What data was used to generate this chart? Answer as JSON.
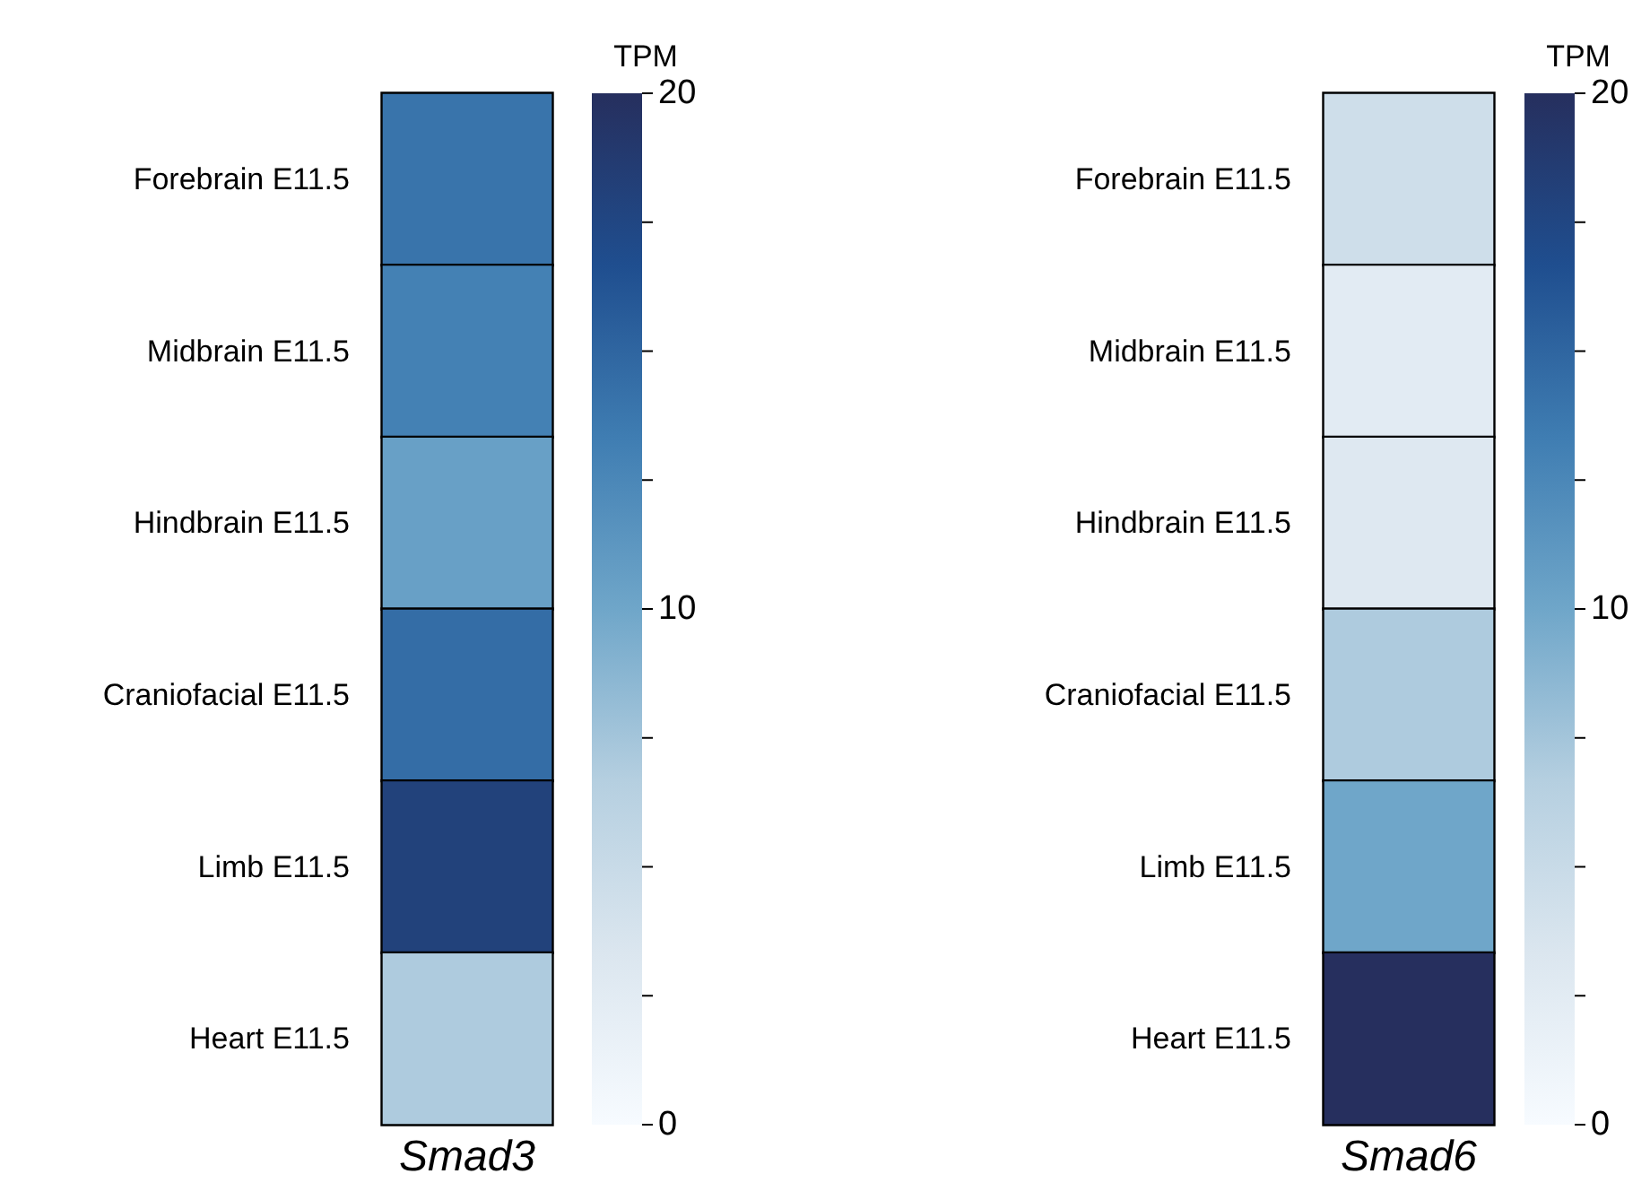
{
  "chart_data": [
    {
      "type": "heatmap",
      "categories": [
        "Smad3"
      ],
      "y_categories": [
        "Forebrain E11.5",
        "Midbrain E11.5",
        "Hindbrain E11.5",
        "Craniofacial E11.5",
        "Limb E11.5",
        "Heart E11.5"
      ],
      "cells": [
        [
          14
        ],
        [
          13
        ],
        [
          10.5
        ],
        [
          14.5
        ],
        [
          18
        ],
        [
          7
        ]
      ],
      "clabel": "TPM",
      "clim": [
        0,
        20
      ],
      "cticks": [
        0,
        {
          "value": 2.5,
          "label": null
        },
        {
          "value": 5,
          "label": null
        },
        {
          "value": 7.5,
          "label": null
        },
        10,
        {
          "value": 12.5,
          "label": null
        },
        {
          "value": 15,
          "label": null
        },
        {
          "value": 17.5,
          "label": null
        },
        20
      ]
    },
    {
      "type": "heatmap",
      "categories": [
        "Smad6"
      ],
      "y_categories": [
        "Forebrain E11.5",
        "Midbrain E11.5",
        "Hindbrain E11.5",
        "Craniofacial E11.5",
        "Limb E11.5",
        "Heart E11.5"
      ],
      "cells": [
        [
          4.5
        ],
        [
          2.5
        ],
        [
          3
        ],
        [
          7
        ],
        [
          10
        ],
        [
          20
        ]
      ],
      "clabel": "TPM",
      "clim": [
        0,
        20
      ],
      "cticks": [
        0,
        {
          "value": 2.5,
          "label": null
        },
        {
          "value": 5,
          "label": null
        },
        {
          "value": 7.5,
          "label": null
        },
        10,
        {
          "value": 12.5,
          "label": null
        },
        {
          "value": 15,
          "label": null
        },
        {
          "value": 17.5,
          "label": null
        },
        20
      ]
    }
  ]
}
